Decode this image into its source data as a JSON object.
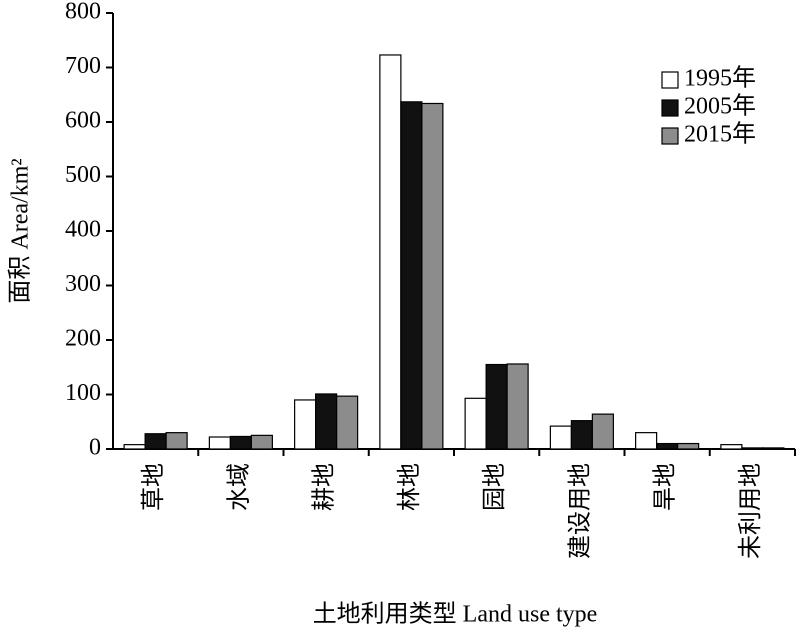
{
  "chart_data": {
    "type": "bar",
    "y_label": "面积 Area/km²",
    "x_label": "土地利用类型 Land use type",
    "categories": [
      "草地",
      "水域",
      "耕地",
      "林地",
      "园地",
      "建设用地",
      "旱地",
      "未利用地"
    ],
    "series": [
      {
        "name": "1995年",
        "color": "#ffffff",
        "values": [
          8,
          22,
          90,
          723,
          93,
          42,
          30,
          8
        ]
      },
      {
        "name": "2005年",
        "color": "#111111",
        "values": [
          28,
          23,
          101,
          637,
          155,
          52,
          10,
          2
        ]
      },
      {
        "name": "2015年",
        "color": "#8c8c8c",
        "values": [
          30,
          25,
          97,
          634,
          156,
          64,
          10,
          2
        ]
      }
    ],
    "ylim": [
      0,
      800
    ],
    "yticks": [
      0,
      100,
      200,
      300,
      400,
      500,
      600,
      700,
      800
    ]
  }
}
